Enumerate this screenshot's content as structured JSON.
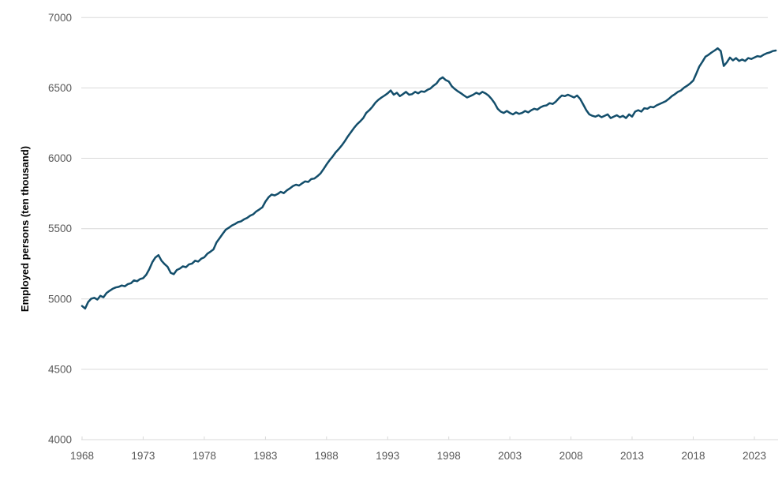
{
  "chart_data": {
    "type": "line",
    "title": "",
    "xlabel": "",
    "ylabel": "Employed persons (ten thousand)",
    "series_name": "Employed persons",
    "legend": "none",
    "grid": "horizontal",
    "background_color": "#ffffff",
    "line_color": "#134e6b",
    "gridline_color": "#d9d9d9",
    "axis_line_color": "#d9d9d9",
    "tick_label_color": "#595959",
    "axis_title_color": "#000000",
    "ylim": [
      4000,
      7000
    ],
    "xlim": [
      1968,
      2025
    ],
    "y_ticks": [
      4000,
      4500,
      5000,
      5500,
      6000,
      6500,
      7000
    ],
    "x_ticks": [
      1968,
      1973,
      1978,
      1983,
      1988,
      1993,
      1998,
      2003,
      2008,
      2013,
      2018,
      2023
    ],
    "x_start": 1968,
    "x_step": 0.25,
    "values": [
      4950,
      4932,
      4978,
      5002,
      5008,
      4996,
      5022,
      5012,
      5042,
      5058,
      5072,
      5082,
      5086,
      5096,
      5090,
      5106,
      5112,
      5132,
      5126,
      5142,
      5148,
      5172,
      5212,
      5262,
      5295,
      5312,
      5272,
      5248,
      5228,
      5186,
      5176,
      5206,
      5216,
      5232,
      5226,
      5246,
      5252,
      5272,
      5266,
      5286,
      5296,
      5322,
      5336,
      5352,
      5402,
      5432,
      5462,
      5492,
      5506,
      5522,
      5532,
      5546,
      5552,
      5566,
      5576,
      5592,
      5602,
      5622,
      5636,
      5652,
      5692,
      5722,
      5742,
      5736,
      5746,
      5762,
      5752,
      5772,
      5786,
      5802,
      5812,
      5806,
      5822,
      5836,
      5832,
      5852,
      5856,
      5872,
      5892,
      5922,
      5956,
      5986,
      6012,
      6042,
      6066,
      6092,
      6122,
      6156,
      6186,
      6216,
      6242,
      6262,
      6286,
      6322,
      6342,
      6366,
      6396,
      6416,
      6432,
      6446,
      6462,
      6482,
      6452,
      6466,
      6442,
      6456,
      6472,
      6452,
      6456,
      6472,
      6462,
      6476,
      6472,
      6486,
      6496,
      6516,
      6532,
      6562,
      6576,
      6556,
      6546,
      6512,
      6492,
      6476,
      6462,
      6446,
      6432,
      6442,
      6452,
      6466,
      6456,
      6472,
      6462,
      6446,
      6422,
      6392,
      6352,
      6332,
      6322,
      6336,
      6322,
      6312,
      6326,
      6316,
      6322,
      6336,
      6326,
      6342,
      6352,
      6346,
      6362,
      6372,
      6376,
      6392,
      6386,
      6402,
      6426,
      6446,
      6442,
      6452,
      6442,
      6432,
      6446,
      6422,
      6382,
      6342,
      6312,
      6302,
      6296,
      6306,
      6292,
      6302,
      6312,
      6286,
      6296,
      6306,
      6292,
      6302,
      6286,
      6312,
      6296,
      6332,
      6342,
      6332,
      6356,
      6352,
      6366,
      6362,
      6376,
      6386,
      6396,
      6406,
      6422,
      6442,
      6456,
      6472,
      6482,
      6502,
      6516,
      6532,
      6552,
      6602,
      6652,
      6686,
      6722,
      6736,
      6752,
      6766,
      6782,
      6762,
      6656,
      6682,
      6716,
      6696,
      6712,
      6692,
      6702,
      6692,
      6712,
      6706,
      6716,
      6726,
      6722,
      6736,
      6746,
      6752,
      6762,
      6766
    ]
  }
}
